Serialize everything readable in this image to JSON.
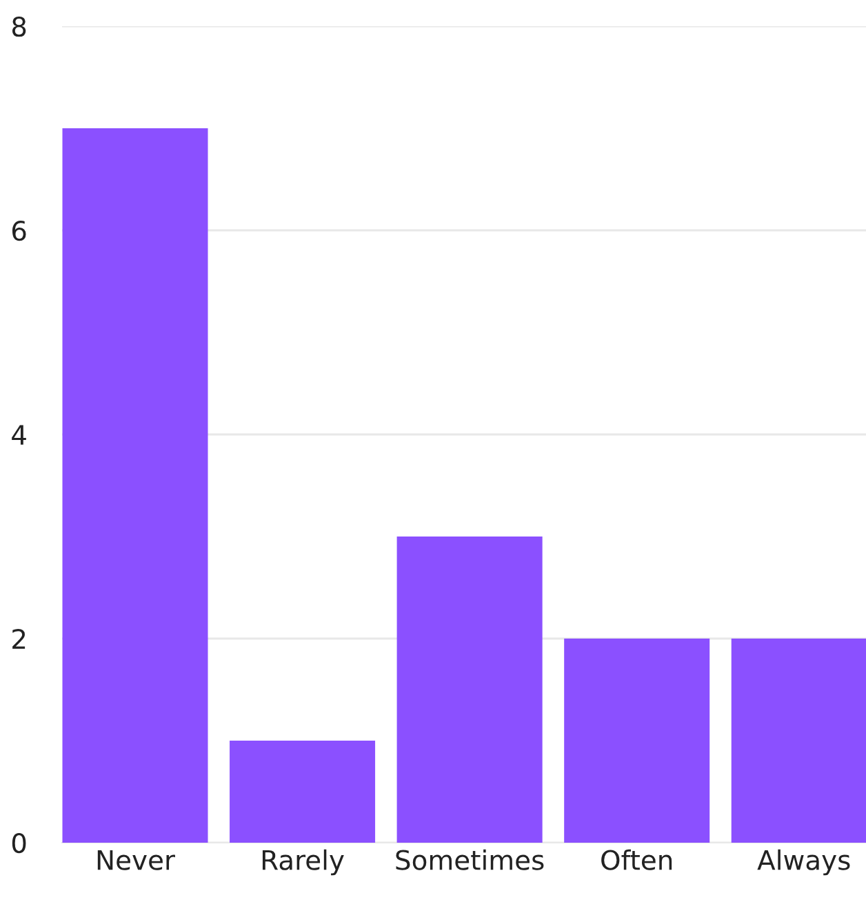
{
  "chart_data": {
    "type": "bar",
    "categories": [
      "Never",
      "Rarely",
      "Sometimes",
      "Often",
      "Always"
    ],
    "values": [
      7,
      1,
      3,
      2,
      2
    ],
    "color": "#8b50ff",
    "ylim": [
      0,
      8
    ],
    "yticks": [
      0,
      2,
      4,
      6,
      8
    ],
    "grid": "y",
    "legend": false
  }
}
